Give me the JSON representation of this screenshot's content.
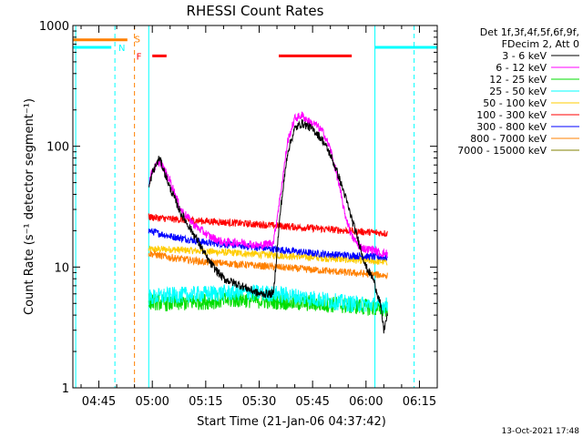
{
  "chart_data": {
    "type": "line",
    "title": "RHESSI Count Rates",
    "xlabel": "Start Time (21-Jan-06 04:37:42)",
    "ylabel": "Count Rate (s⁻¹ detector segment⁻¹)",
    "x_tick_labels": [
      "04:45",
      "05:00",
      "05:15",
      "05:30",
      "05:45",
      "06:00",
      "06:15"
    ],
    "x_ticks_hhmm": [
      "04:45",
      "05:00",
      "05:15",
      "05:30",
      "05:45",
      "06:00",
      "06:15"
    ],
    "xlim": [
      "04:37:42",
      "06:20:00"
    ],
    "y_tick_labels": [
      "1",
      "10",
      "100",
      "1000"
    ],
    "ylim": [
      1,
      1000
    ],
    "yscale": "log",
    "grid": false,
    "legend_header": [
      "Det 1f,3f,4f,5f,6f,9f,",
      "FDecim 2, Att 0"
    ],
    "legend_position": "right, outside plot",
    "series": [
      {
        "name": "3 - 6 keV",
        "color": "#000000",
        "times": [
          "04:59",
          "05:00",
          "05:02",
          "05:05",
          "05:08",
          "05:12",
          "05:16",
          "05:20",
          "05:25",
          "05:30",
          "05:34",
          "05:36",
          "05:38",
          "05:40",
          "05:42",
          "05:44",
          "05:46",
          "05:48",
          "05:50",
          "05:52",
          "05:54",
          "05:56",
          "05:58",
          "06:00",
          "06:02",
          "06:04",
          "06:05",
          "06:06"
        ],
        "values": [
          45,
          60,
          80,
          45,
          28,
          18,
          11,
          8,
          7,
          6,
          6,
          30,
          90,
          140,
          155,
          145,
          130,
          110,
          85,
          60,
          40,
          25,
          16,
          10,
          8,
          5,
          3,
          4
        ]
      },
      {
        "name": "6 - 12 keV",
        "color": "#ff00ff",
        "times": [
          "04:59",
          "05:00",
          "05:02",
          "05:05",
          "05:08",
          "05:12",
          "05:16",
          "05:20",
          "05:25",
          "05:30",
          "05:34",
          "05:36",
          "05:38",
          "05:40",
          "05:42",
          "05:44",
          "05:46",
          "05:48",
          "05:50",
          "05:52",
          "05:54",
          "05:56",
          "05:58",
          "06:00",
          "06:02",
          "06:04",
          "06:06"
        ],
        "values": [
          50,
          62,
          75,
          52,
          30,
          22,
          18,
          16,
          16,
          15,
          16,
          40,
          110,
          170,
          180,
          160,
          150,
          130,
          95,
          55,
          28,
          18,
          15,
          14,
          14,
          13,
          13
        ]
      },
      {
        "name": "12 - 25 keV",
        "color": "#00dd00",
        "times": [
          "04:59",
          "05:05",
          "05:15",
          "05:25",
          "05:35",
          "05:45",
          "05:55",
          "06:06"
        ],
        "values": [
          5.2,
          5.0,
          5.2,
          5.4,
          5.2,
          5.0,
          4.8,
          4.5
        ]
      },
      {
        "name": "25 - 50 keV",
        "color": "#00ffff",
        "times": [
          "04:59",
          "05:05",
          "05:15",
          "05:25",
          "05:35",
          "05:45",
          "05:55",
          "06:06"
        ],
        "values": [
          5.6,
          5.8,
          6.0,
          6.2,
          6.0,
          5.5,
          5.0,
          4.8
        ]
      },
      {
        "name": "50 - 100 keV",
        "color": "#ffcc00",
        "times": [
          "04:59",
          "05:05",
          "05:15",
          "05:25",
          "05:35",
          "05:45",
          "05:55",
          "06:06"
        ],
        "values": [
          14,
          14,
          13.5,
          13,
          12.5,
          12,
          11.5,
          11
        ]
      },
      {
        "name": "100 - 300 keV",
        "color": "#ff0000",
        "times": [
          "04:59",
          "05:05",
          "05:15",
          "05:25",
          "05:35",
          "05:45",
          "05:55",
          "06:06"
        ],
        "values": [
          26,
          25,
          24,
          23,
          22,
          21,
          20,
          19
        ]
      },
      {
        "name": "300 - 800 keV",
        "color": "#0000ff",
        "times": [
          "04:59",
          "05:05",
          "05:15",
          "05:25",
          "05:35",
          "05:45",
          "05:55",
          "06:06"
        ],
        "values": [
          20,
          18,
          16,
          15,
          14,
          13,
          12.5,
          12
        ]
      },
      {
        "name": "800 - 7000 keV",
        "color": "#ff8000",
        "times": [
          "04:59",
          "05:05",
          "05:15",
          "05:25",
          "05:35",
          "05:45",
          "05:55",
          "06:06"
        ],
        "values": [
          13,
          12,
          11,
          10.5,
          10,
          9.5,
          9,
          8.5
        ]
      },
      {
        "name": "7000 - 15000 keV",
        "color": "#808000",
        "times": [],
        "values": []
      }
    ],
    "vertical_lines": [
      {
        "time": "04:38:30",
        "color": "#00ffff",
        "style": "solid"
      },
      {
        "time": "04:49:30",
        "color": "#00ffff",
        "style": "dashed"
      },
      {
        "time": "04:55:00",
        "color": "#ff8000",
        "style": "dashed"
      },
      {
        "time": "04:59:00",
        "color": "#00ffff",
        "style": "solid"
      },
      {
        "time": "06:02:30",
        "color": "#00ffff",
        "style": "solid"
      },
      {
        "time": "06:13:30",
        "color": "#00ffff",
        "style": "dashed"
      }
    ],
    "flag_bars": [
      {
        "label": "S",
        "color": "#ff8000",
        "start": "04:37:42",
        "end": "04:53:00",
        "value": 760
      },
      {
        "label": "N",
        "color": "#00ffff",
        "start": "04:37:42",
        "end": "04:48:30",
        "value": 660
      },
      {
        "label": "N",
        "color": "#00ffff",
        "start": "06:02:30",
        "end": "06:20:00",
        "value": 660
      },
      {
        "label": "F",
        "color": "#ff0000",
        "start": "05:00:00",
        "end": "05:04:00",
        "value": 560
      },
      {
        "label": "F",
        "color": "#ff0000",
        "start": "05:35:30",
        "end": "05:56:00",
        "value": 560
      }
    ],
    "flag_labels": [
      {
        "text": "S",
        "color": "#ff8000",
        "time": "04:55:00",
        "value": 780
      },
      {
        "text": "N",
        "color": "#00ffff",
        "time": "04:50:30",
        "value": 660
      },
      {
        "text": "F",
        "color": "#ff0000",
        "time": "04:55:30",
        "value": 560
      }
    ]
  },
  "timestamp": "13-Oct-2021 17:48"
}
